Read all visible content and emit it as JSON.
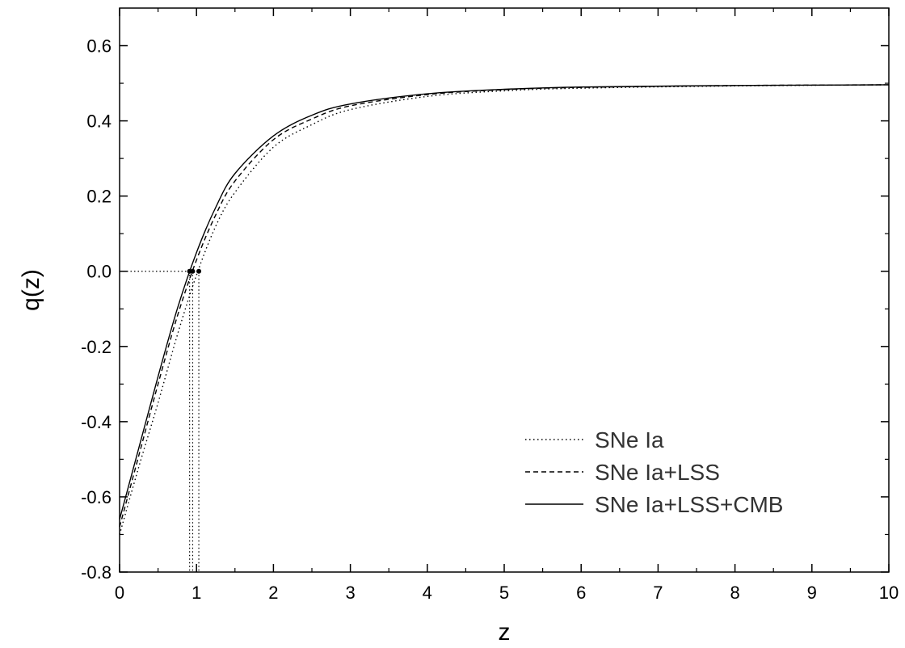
{
  "chart_data": {
    "type": "line",
    "title": "",
    "xlabel": "z",
    "ylabel": "q(z)",
    "xlim": [
      0,
      10
    ],
    "ylim": [
      -0.8,
      0.7
    ],
    "x_ticks": [
      0,
      1,
      2,
      3,
      4,
      5,
      6,
      7,
      8,
      9,
      10
    ],
    "x_tick_labels": [
      "0",
      "1",
      "2",
      "3",
      "4",
      "5",
      "6",
      "7",
      "8",
      "9",
      "10"
    ],
    "y_ticks": [
      -0.8,
      -0.6,
      -0.4,
      -0.2,
      0.0,
      0.2,
      0.4,
      0.6
    ],
    "y_tick_labels": [
      "-0.8",
      "-0.6",
      "-0.4",
      "-0.2",
      "0.0",
      "0.2",
      "0.4",
      "0.6"
    ],
    "grid": false,
    "legend_position": "lower-right",
    "series": [
      {
        "name": "SNe Ia",
        "style": "dotted",
        "x": [
          0,
          0.25,
          0.5,
          0.75,
          1.0,
          1.25,
          1.5,
          2,
          2.5,
          3,
          4,
          5,
          6,
          8,
          10
        ],
        "y": [
          -0.7,
          -0.52,
          -0.35,
          -0.17,
          -0.01,
          0.12,
          0.21,
          0.33,
          0.39,
          0.43,
          0.465,
          0.48,
          0.487,
          0.493,
          0.496
        ],
        "transition": {
          "z": 1.03,
          "q": 0.0
        }
      },
      {
        "name": "SNe Ia+LSS",
        "style": "dashed",
        "x": [
          0,
          0.25,
          0.5,
          0.75,
          1.0,
          1.25,
          1.5,
          2,
          2.5,
          3,
          4,
          5,
          6,
          8,
          10
        ],
        "y": [
          -0.68,
          -0.49,
          -0.3,
          -0.12,
          0.03,
          0.15,
          0.24,
          0.35,
          0.405,
          0.44,
          0.47,
          0.483,
          0.489,
          0.494,
          0.496
        ],
        "transition": {
          "z": 0.95,
          "q": 0.0
        }
      },
      {
        "name": "SNe Ia+LSS+CMB",
        "style": "solid",
        "x": [
          0,
          0.25,
          0.5,
          0.75,
          1.0,
          1.25,
          1.5,
          2,
          2.5,
          3,
          4,
          5,
          6,
          8,
          10
        ],
        "y": [
          -0.66,
          -0.47,
          -0.28,
          -0.1,
          0.05,
          0.17,
          0.26,
          0.36,
          0.415,
          0.445,
          0.472,
          0.484,
          0.49,
          0.494,
          0.496
        ],
        "transition": {
          "z": 0.91,
          "q": 0.0
        }
      }
    ]
  }
}
